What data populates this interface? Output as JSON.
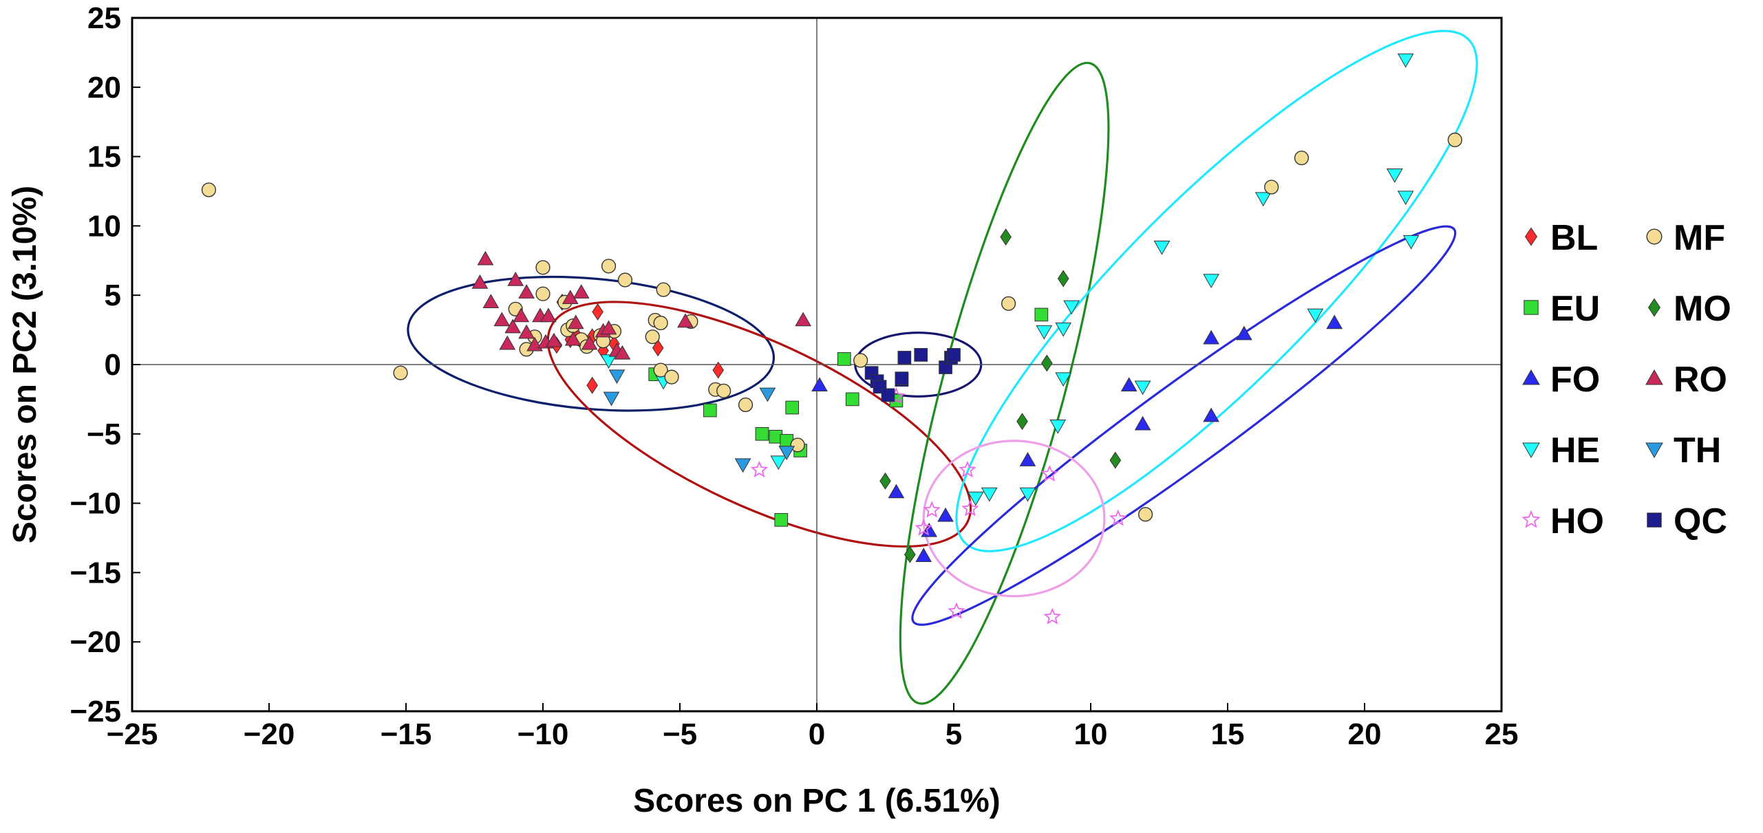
{
  "chart_data": {
    "type": "scatter",
    "title": "",
    "xlabel": "Scores on PC 1 (6.51%)",
    "ylabel": "Scores on PC2 (3.10%)",
    "xlim": [
      -25,
      25
    ],
    "ylim": [
      -25,
      25
    ],
    "xticks": [
      -25,
      -20,
      -15,
      -10,
      -5,
      0,
      5,
      10,
      15,
      20,
      25
    ],
    "yticks": [
      -25,
      -20,
      -15,
      -10,
      -5,
      0,
      5,
      10,
      15,
      20,
      25
    ],
    "xtick_labels": [
      "−25",
      "−20",
      "−15",
      "−10",
      "−5",
      "0",
      "5",
      "10",
      "15",
      "20",
      "25"
    ],
    "ytick_labels": [
      "−25",
      "−20",
      "−15",
      "−10",
      "−5",
      "0",
      "5",
      "10",
      "15",
      "20",
      "25"
    ],
    "zero_lines": true,
    "legend_position": "right",
    "series": [
      {
        "name": "BL",
        "marker": "diamond",
        "color": "#ff2a2a",
        "points": [
          [
            -8.8,
            2.2
          ],
          [
            -9.0,
            1.8
          ],
          [
            -8.5,
            1.5
          ],
          [
            -8.2,
            2.0
          ],
          [
            -8.0,
            3.8
          ],
          [
            -7.8,
            1.0
          ],
          [
            -8.2,
            -1.5
          ],
          [
            -9.3,
            4.5
          ],
          [
            -9.5,
            1.4
          ],
          [
            -7.4,
            1.5
          ],
          [
            -5.8,
            1.2
          ],
          [
            -3.6,
            -0.4
          ]
        ]
      },
      {
        "name": "EU",
        "marker": "square",
        "color": "#33dd33",
        "points": [
          [
            -5.9,
            -0.7
          ],
          [
            -3.9,
            -3.3
          ],
          [
            -2.0,
            -5.0
          ],
          [
            -1.5,
            -5.2
          ],
          [
            -1.1,
            -5.5
          ],
          [
            -0.9,
            -3.1
          ],
          [
            -0.6,
            -6.2
          ],
          [
            -1.3,
            -11.2
          ],
          [
            1.0,
            0.4
          ],
          [
            1.3,
            -2.5
          ],
          [
            2.9,
            -2.6
          ],
          [
            8.2,
            3.6
          ]
        ]
      },
      {
        "name": "FO",
        "marker": "triangle-up",
        "color": "#2a2aee",
        "points": [
          [
            0.1,
            -1.5
          ],
          [
            2.9,
            -9.2
          ],
          [
            3.9,
            -13.8
          ],
          [
            4.1,
            -12.0
          ],
          [
            4.7,
            -10.9
          ],
          [
            7.7,
            -6.9
          ],
          [
            11.4,
            -1.5
          ],
          [
            11.9,
            -4.3
          ],
          [
            14.4,
            1.9
          ],
          [
            14.4,
            -3.7
          ],
          [
            15.6,
            2.2
          ],
          [
            18.9,
            3.0
          ]
        ]
      },
      {
        "name": "HE",
        "marker": "triangle-down",
        "color": "#22ffff",
        "points": [
          [
            -7.6,
            0.3
          ],
          [
            -5.6,
            -1.2
          ],
          [
            -1.4,
            -7.0
          ],
          [
            5.8,
            -9.6
          ],
          [
            6.3,
            -9.3
          ],
          [
            7.7,
            -9.3
          ],
          [
            8.8,
            -4.4
          ],
          [
            8.3,
            2.4
          ],
          [
            9.0,
            2.6
          ],
          [
            9.3,
            4.2
          ],
          [
            9.0,
            -1.0
          ],
          [
            11.9,
            -1.6
          ],
          [
            12.6,
            8.5
          ],
          [
            14.4,
            6.1
          ],
          [
            16.3,
            12.0
          ],
          [
            18.2,
            3.6
          ],
          [
            21.1,
            13.7
          ],
          [
            21.5,
            12.1
          ],
          [
            21.5,
            22.0
          ],
          [
            21.7,
            8.9
          ]
        ]
      },
      {
        "name": "HO",
        "marker": "star",
        "color": "#ee66ee",
        "points": [
          [
            -2.1,
            -7.6
          ],
          [
            2.9,
            -2.3
          ],
          [
            3.9,
            -11.8
          ],
          [
            4.2,
            -10.5
          ],
          [
            5.1,
            -17.8
          ],
          [
            5.5,
            -7.6
          ],
          [
            5.6,
            -10.4
          ],
          [
            8.5,
            -7.9
          ],
          [
            8.6,
            -18.2
          ],
          [
            11.0,
            -11.1
          ]
        ]
      },
      {
        "name": "MF",
        "marker": "circle",
        "color": "#f5dc94",
        "points": [
          [
            -22.2,
            12.6
          ],
          [
            -15.2,
            -0.6
          ],
          [
            -11.0,
            4.0
          ],
          [
            -10.6,
            1.1
          ],
          [
            -10.3,
            2.0
          ],
          [
            -10.0,
            7.0
          ],
          [
            -10.0,
            5.1
          ],
          [
            -9.2,
            4.5
          ],
          [
            -9.1,
            2.5
          ],
          [
            -8.9,
            2.8
          ],
          [
            -8.6,
            1.8
          ],
          [
            -8.4,
            1.3
          ],
          [
            -7.9,
            2.1
          ],
          [
            -7.8,
            1.7
          ],
          [
            -7.6,
            7.1
          ],
          [
            -7.4,
            2.4
          ],
          [
            -7.0,
            6.1
          ],
          [
            -6.0,
            2.0
          ],
          [
            -5.9,
            3.2
          ],
          [
            -5.7,
            3.0
          ],
          [
            -5.6,
            5.4
          ],
          [
            -5.7,
            -0.4
          ],
          [
            -5.3,
            -0.9
          ],
          [
            -4.6,
            3.1
          ],
          [
            -3.7,
            -1.8
          ],
          [
            -3.4,
            -1.9
          ],
          [
            -2.6,
            -2.9
          ],
          [
            -0.7,
            -5.8
          ],
          [
            1.6,
            0.3
          ],
          [
            7.0,
            4.4
          ],
          [
            12.0,
            -10.8
          ],
          [
            16.6,
            12.8
          ],
          [
            17.7,
            14.9
          ],
          [
            23.3,
            16.2
          ]
        ]
      },
      {
        "name": "MO",
        "marker": "diamond",
        "color": "#228b22",
        "points": [
          [
            2.5,
            -8.4
          ],
          [
            3.4,
            -13.7
          ],
          [
            6.9,
            9.2
          ],
          [
            7.5,
            -4.1
          ],
          [
            8.4,
            0.1
          ],
          [
            9.0,
            6.2
          ],
          [
            10.9,
            -6.9
          ]
        ]
      },
      {
        "name": "RO",
        "marker": "triangle-up",
        "color": "#c8285a",
        "points": [
          [
            -12.3,
            5.9
          ],
          [
            -12.1,
            7.6
          ],
          [
            -11.9,
            4.5
          ],
          [
            -11.5,
            3.2
          ],
          [
            -11.3,
            1.5
          ],
          [
            -11.1,
            2.7
          ],
          [
            -11.0,
            6.1
          ],
          [
            -10.8,
            3.5
          ],
          [
            -10.6,
            5.2
          ],
          [
            -10.6,
            2.3
          ],
          [
            -10.3,
            1.4
          ],
          [
            -10.1,
            3.5
          ],
          [
            -9.9,
            1.6
          ],
          [
            -9.8,
            3.5
          ],
          [
            -9.6,
            1.7
          ],
          [
            -9.0,
            4.8
          ],
          [
            -8.9,
            1.8
          ],
          [
            -8.8,
            3.0
          ],
          [
            -8.6,
            5.2
          ],
          [
            -8.3,
            1.5
          ],
          [
            -7.8,
            2.4
          ],
          [
            -7.6,
            2.6
          ],
          [
            -7.3,
            1.0
          ],
          [
            -7.1,
            0.8
          ],
          [
            -4.8,
            3.1
          ],
          [
            -0.5,
            3.2
          ]
        ]
      },
      {
        "name": "TH",
        "marker": "triangle-down",
        "color": "#2a9be0",
        "points": [
          [
            -7.3,
            -0.8
          ],
          [
            -7.5,
            -2.4
          ],
          [
            -2.7,
            -7.2
          ],
          [
            -1.8,
            -2.1
          ],
          [
            -1.1,
            -6.3
          ]
        ]
      },
      {
        "name": "QC",
        "marker": "square",
        "color": "#1c1c8c",
        "points": [
          [
            2.0,
            -0.6
          ],
          [
            2.2,
            -1.2
          ],
          [
            2.3,
            -1.6
          ],
          [
            2.6,
            -2.2
          ],
          [
            3.1,
            -1.1
          ],
          [
            3.2,
            0.5
          ],
          [
            3.8,
            0.7
          ],
          [
            4.7,
            -0.2
          ],
          [
            4.9,
            0.5
          ],
          [
            5.0,
            0.7
          ],
          [
            3.1,
            -1.0
          ]
        ]
      }
    ],
    "ellipses": [
      {
        "group": "RO/MF",
        "color": "#0d1f6b",
        "cx": -8.25,
        "cy": 1.5,
        "rx": 6.7,
        "ry": 4.7,
        "angle": -5
      },
      {
        "group": "BL/EU",
        "color": "#b01010",
        "cx": -2.1,
        "cy": -4.3,
        "rx": 8.4,
        "ry": 5.9,
        "angle": -25
      },
      {
        "group": "QC",
        "color": "#14146e",
        "cx": 3.7,
        "cy": 0.0,
        "rx": 2.3,
        "ry": 2.3,
        "angle": 0
      },
      {
        "group": "MO",
        "color": "#1e8c1e",
        "cx": 6.85,
        "cy": -1.35,
        "rx": 12.1,
        "ry": 4.4,
        "angle": 75
      },
      {
        "group": "HE",
        "color": "#22e8ff",
        "cx": 14.6,
        "cy": 5.3,
        "rx": 13.0,
        "ry": 6.7,
        "angle": 45
      },
      {
        "group": "FO",
        "color": "#2a2ad8",
        "cx": 13.4,
        "cy": -4.4,
        "rx": 12.2,
        "ry": 3.0,
        "angle": 36
      },
      {
        "group": "HO",
        "color": "#ef9fe8",
        "cx": 7.2,
        "cy": -11.1,
        "rx": 3.3,
        "ry": 5.6,
        "angle": 0
      }
    ],
    "legend": [
      {
        "name": "BL",
        "marker": "diamond",
        "color": "#ff2a2a"
      },
      {
        "name": "MF",
        "marker": "circle",
        "color": "#f5dc94"
      },
      {
        "name": "EU",
        "marker": "square",
        "color": "#33dd33"
      },
      {
        "name": "MO",
        "marker": "diamond",
        "color": "#228b22"
      },
      {
        "name": "FO",
        "marker": "triangle-up",
        "color": "#2a2aee"
      },
      {
        "name": "RO",
        "marker": "triangle-up",
        "color": "#c8285a"
      },
      {
        "name": "HE",
        "marker": "triangle-down",
        "color": "#22ffff"
      },
      {
        "name": "TH",
        "marker": "triangle-down",
        "color": "#2a9be0"
      },
      {
        "name": "HO",
        "marker": "star",
        "color": "#ee66ee"
      },
      {
        "name": "QC",
        "marker": "square",
        "color": "#1c1c8c"
      }
    ]
  }
}
